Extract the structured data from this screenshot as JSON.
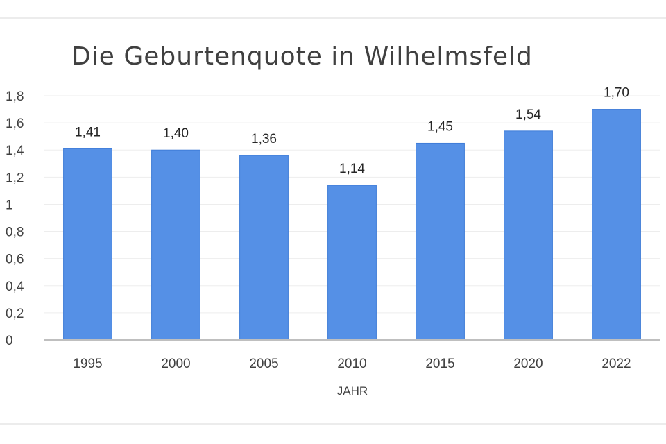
{
  "chart_data": {
    "type": "bar",
    "title": "Die Geburtenquote in Wilhelmsfeld",
    "xlabel": "JAHR",
    "ylabel": "",
    "categories": [
      "1995",
      "2000",
      "2005",
      "2010",
      "2015",
      "2020",
      "2022"
    ],
    "values": [
      1.41,
      1.4,
      1.36,
      1.14,
      1.45,
      1.54,
      1.7
    ],
    "data_labels": [
      "1,41",
      "1,40",
      "1,36",
      "1,14",
      "1,45",
      "1,54",
      "1,70"
    ],
    "ylim": [
      0,
      1.8
    ],
    "yticks": [
      0,
      0.2,
      0.4,
      0.6,
      0.8,
      1.0,
      1.2,
      1.4,
      1.6,
      1.8
    ],
    "ytick_labels": [
      "0",
      "0,2",
      "0,4",
      "0,6",
      "0,8",
      "1",
      "1,2",
      "1,4",
      "1,6",
      "1,8"
    ],
    "grid": true,
    "legend": "none",
    "colors": {
      "bar": "#5590e6",
      "gridline": "#ededed",
      "axis": "#bfbfbf",
      "frame": "#e6e6e6"
    }
  }
}
